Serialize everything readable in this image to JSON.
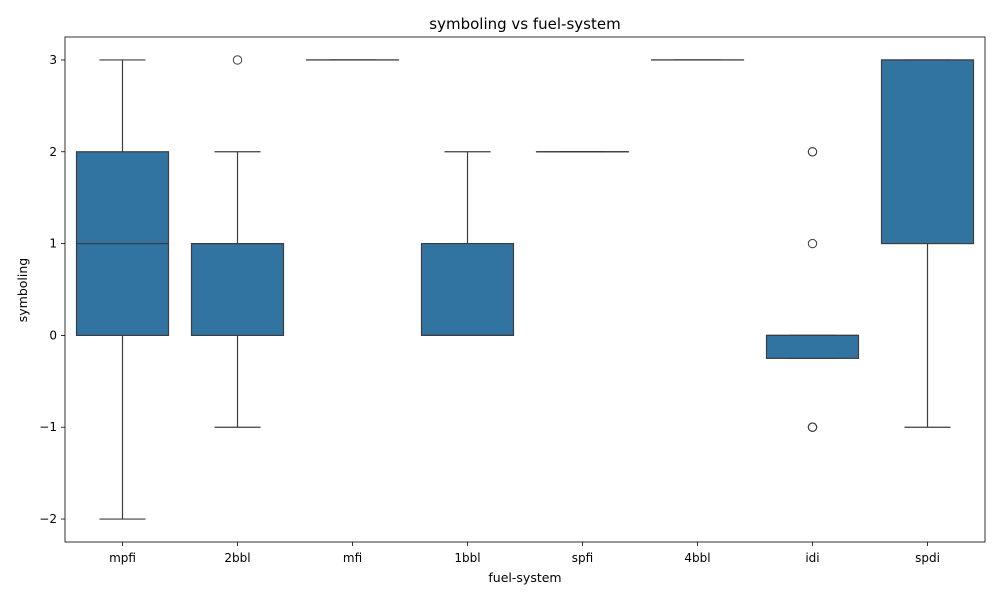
{
  "chart_data": {
    "type": "box",
    "title": "symboling vs fuel-system",
    "xlabel": "fuel-system",
    "ylabel": "symboling",
    "ylim": [
      -2.25,
      3.25
    ],
    "yticks": [
      -2,
      -1,
      0,
      1,
      2,
      3
    ],
    "ytick_labels": [
      "−2",
      "−1",
      "0",
      "1",
      "2",
      "3"
    ],
    "categories": [
      "mpfi",
      "2bbl",
      "mfi",
      "1bbl",
      "spfi",
      "4bbl",
      "idi",
      "spdi"
    ],
    "boxes": [
      {
        "category": "mpfi",
        "whisker_low": -2,
        "q1": 0,
        "median": 1,
        "q3": 2,
        "whisker_high": 3,
        "outliers": []
      },
      {
        "category": "2bbl",
        "whisker_low": -1,
        "q1": 0,
        "median": 1,
        "q3": 1,
        "whisker_high": 2,
        "outliers": [
          3
        ]
      },
      {
        "category": "mfi",
        "whisker_low": 3,
        "q1": 3,
        "median": 3,
        "q3": 3,
        "whisker_high": 3,
        "outliers": []
      },
      {
        "category": "1bbl",
        "whisker_low": 0,
        "q1": 0,
        "median": 0,
        "q3": 1,
        "whisker_high": 2,
        "outliers": []
      },
      {
        "category": "spfi",
        "whisker_low": 2,
        "q1": 2,
        "median": 2,
        "q3": 2,
        "whisker_high": 2,
        "outliers": []
      },
      {
        "category": "4bbl",
        "whisker_low": 3,
        "q1": 3,
        "median": 3,
        "q3": 3,
        "whisker_high": 3,
        "outliers": []
      },
      {
        "category": "idi",
        "whisker_low": -0.25,
        "q1": -0.25,
        "median": 0,
        "q3": 0,
        "whisker_high": 0,
        "outliers": [
          2,
          2,
          1,
          -1,
          -1,
          -1
        ]
      },
      {
        "category": "spdi",
        "whisker_low": -1,
        "q1": 1,
        "median": 3,
        "q3": 3,
        "whisker_high": 3,
        "outliers": []
      }
    ],
    "box_color": "#3274a1",
    "line_color": "#3d3d3d",
    "grid": false
  }
}
